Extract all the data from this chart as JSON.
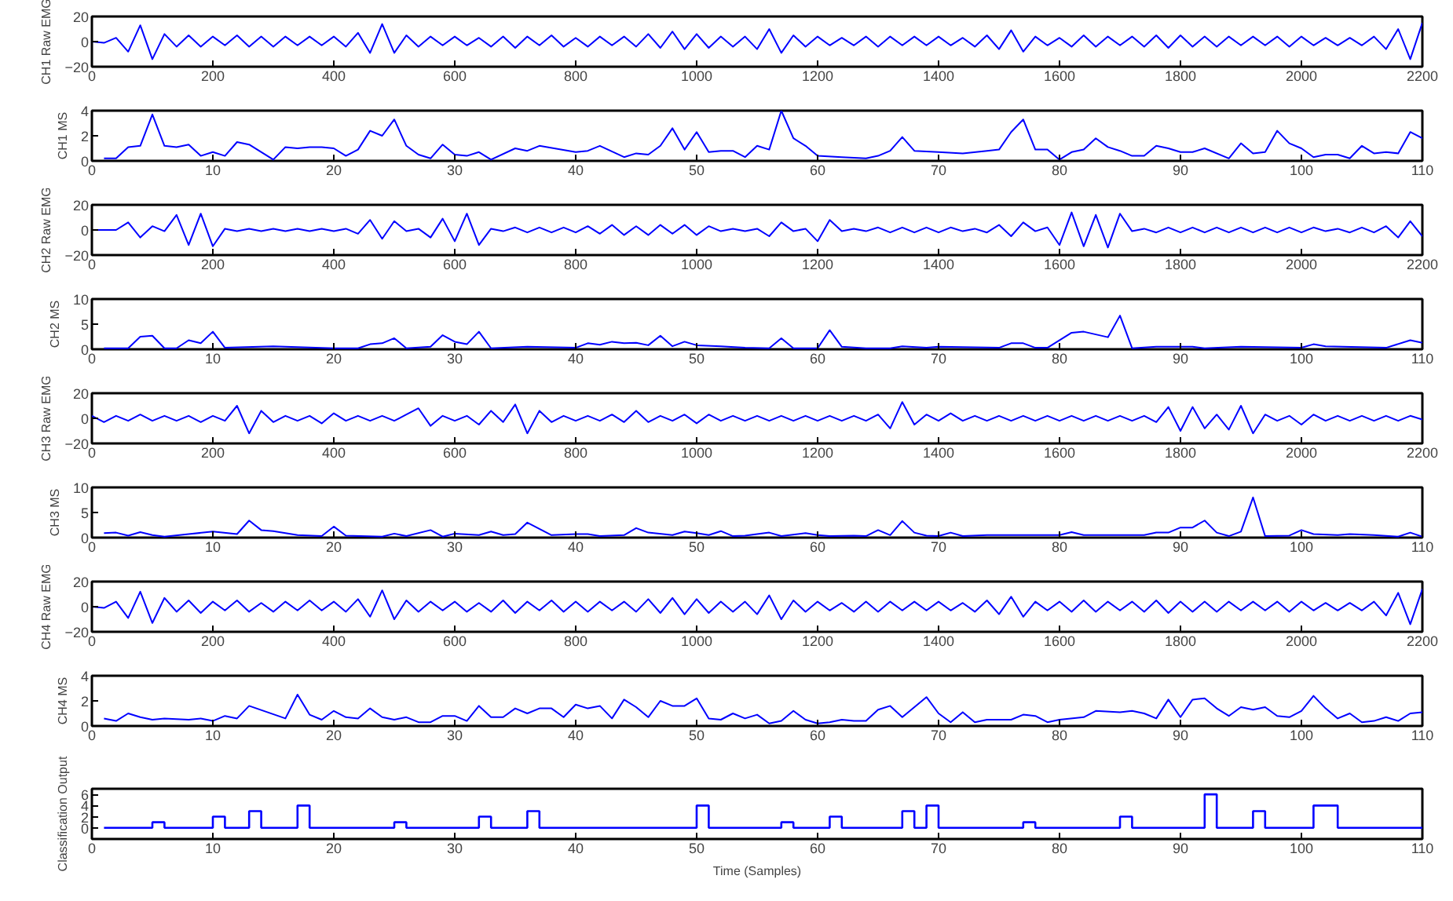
{
  "chart_data": [
    {
      "type": "line",
      "ylabel": "CH1 Raw EMG",
      "color": "#0000ff",
      "xlim": [
        0,
        2200
      ],
      "ylim": [
        -20,
        20
      ],
      "xticks": [
        0,
        200,
        400,
        600,
        800,
        1000,
        1200,
        1400,
        1600,
        1800,
        2000,
        2200
      ],
      "yticks": [
        -20,
        0,
        20
      ],
      "x": [
        0,
        20,
        40,
        60,
        80,
        100,
        120,
        140,
        160,
        180,
        200,
        220,
        240,
        260,
        280,
        300,
        320,
        340,
        360,
        380,
        400,
        420,
        440,
        460,
        480,
        500,
        520,
        540,
        560,
        580,
        600,
        620,
        640,
        660,
        680,
        700,
        720,
        740,
        760,
        780,
        800,
        820,
        840,
        860,
        880,
        900,
        920,
        940,
        960,
        980,
        1000,
        1020,
        1040,
        1060,
        1080,
        1100,
        1120,
        1140,
        1160,
        1180,
        1200,
        1220,
        1240,
        1260,
        1280,
        1300,
        1320,
        1340,
        1360,
        1380,
        1400,
        1420,
        1440,
        1460,
        1480,
        1500,
        1520,
        1540,
        1560,
        1580,
        1600,
        1620,
        1640,
        1660,
        1680,
        1700,
        1720,
        1740,
        1760,
        1780,
        1800,
        1820,
        1840,
        1860,
        1880,
        1900,
        1920,
        1940,
        1960,
        1980,
        2000,
        2020,
        2040,
        2060,
        2080,
        2100,
        2120,
        2140,
        2160,
        2180,
        2200
      ],
      "values": [
        0,
        -1,
        3,
        -8,
        13,
        -14,
        6,
        -4,
        5,
        -4,
        4,
        -3,
        5,
        -4,
        4,
        -4,
        4,
        -3,
        4,
        -3,
        4,
        -4,
        7,
        -9,
        14,
        -9,
        5,
        -4,
        4,
        -3,
        4,
        -3,
        3,
        -4,
        4,
        -5,
        4,
        -3,
        5,
        -4,
        3,
        -4,
        4,
        -3,
        4,
        -4,
        6,
        -5,
        8,
        -6,
        6,
        -5,
        4,
        -4,
        4,
        -6,
        10,
        -9,
        5,
        -4,
        4,
        -3,
        3,
        -3,
        4,
        -4,
        4,
        -3,
        4,
        -3,
        4,
        -3,
        3,
        -4,
        5,
        -6,
        9,
        -8,
        4,
        -3,
        3,
        -4,
        5,
        -4,
        4,
        -3,
        4,
        -4,
        5,
        -5,
        5,
        -4,
        4,
        -4,
        4,
        -3,
        4,
        -3,
        4,
        -4,
        4,
        -3,
        3,
        -3,
        3,
        -3,
        4,
        -6,
        10,
        -14,
        15
      ]
    },
    {
      "type": "line",
      "ylabel": "CH1 MS",
      "color": "#0000ff",
      "xlim": [
        0,
        110
      ],
      "ylim": [
        0,
        4
      ],
      "xticks": [
        0,
        10,
        20,
        30,
        40,
        50,
        60,
        70,
        80,
        90,
        100,
        110
      ],
      "yticks": [
        0,
        2,
        4
      ],
      "x": [
        1,
        2,
        3,
        4,
        5,
        6,
        7,
        8,
        9,
        10,
        11,
        12,
        13,
        15,
        16,
        17,
        18,
        19,
        20,
        21,
        22,
        23,
        24,
        25,
        26,
        27,
        28,
        29,
        30,
        31,
        32,
        33,
        35,
        36,
        37,
        40,
        41,
        42,
        44,
        45,
        46,
        47,
        48,
        49,
        50,
        51,
        52,
        53,
        54,
        55,
        56,
        57,
        58,
        59,
        60,
        62,
        64,
        65,
        66,
        67,
        68,
        70,
        72,
        74,
        75,
        76,
        77,
        78,
        79,
        80,
        81,
        82,
        83,
        84,
        85,
        86,
        87,
        88,
        89,
        90,
        91,
        92,
        94,
        95,
        96,
        97,
        98,
        99,
        100,
        101,
        102,
        103,
        104,
        105,
        106,
        107,
        108,
        109,
        110
      ],
      "values": [
        0.2,
        0.2,
        1.1,
        1.2,
        3.7,
        1.2,
        1.1,
        1.3,
        0.4,
        0.7,
        0.4,
        1.5,
        1.3,
        0.1,
        1.1,
        1.0,
        1.1,
        1.1,
        1.0,
        0.4,
        0.9,
        2.4,
        2.0,
        3.3,
        1.2,
        0.5,
        0.2,
        1.3,
        0.5,
        0.4,
        0.7,
        0.1,
        1.0,
        0.8,
        1.2,
        0.7,
        0.8,
        1.2,
        0.3,
        0.6,
        0.5,
        1.2,
        2.6,
        0.9,
        2.3,
        0.7,
        0.8,
        0.8,
        0.3,
        1.2,
        0.9,
        4.0,
        1.8,
        1.2,
        0.4,
        0.3,
        0.2,
        0.4,
        0.8,
        1.9,
        0.8,
        0.7,
        0.6,
        0.8,
        0.9,
        2.3,
        3.3,
        0.9,
        0.9,
        0.1,
        0.7,
        0.9,
        1.8,
        1.1,
        0.8,
        0.4,
        0.4,
        1.2,
        1.0,
        0.7,
        0.7,
        1.0,
        0.2,
        1.4,
        0.6,
        0.7,
        2.4,
        1.4,
        1.0,
        0.3,
        0.5,
        0.5,
        0.2,
        1.2,
        0.6,
        0.7,
        0.6,
        2.3,
        1.8
      ]
    },
    {
      "type": "line",
      "ylabel": "CH2 Raw EMG",
      "color": "#0000ff",
      "xlim": [
        0,
        2200
      ],
      "ylim": [
        -20,
        20
      ],
      "xticks": [
        0,
        200,
        400,
        600,
        800,
        1000,
        1200,
        1400,
        1600,
        1800,
        2000,
        2200
      ],
      "yticks": [
        -20,
        0,
        20
      ],
      "x": [
        0,
        20,
        40,
        60,
        80,
        100,
        120,
        140,
        160,
        180,
        200,
        220,
        240,
        260,
        280,
        300,
        320,
        340,
        360,
        380,
        400,
        420,
        440,
        460,
        480,
        500,
        520,
        540,
        560,
        580,
        600,
        620,
        640,
        660,
        680,
        700,
        720,
        740,
        760,
        780,
        800,
        820,
        840,
        860,
        880,
        900,
        920,
        940,
        960,
        980,
        1000,
        1020,
        1040,
        1060,
        1080,
        1100,
        1120,
        1140,
        1160,
        1180,
        1200,
        1220,
        1240,
        1260,
        1280,
        1300,
        1320,
        1340,
        1360,
        1380,
        1400,
        1420,
        1440,
        1460,
        1480,
        1500,
        1520,
        1540,
        1560,
        1580,
        1600,
        1620,
        1640,
        1660,
        1680,
        1700,
        1720,
        1740,
        1760,
        1780,
        1800,
        1820,
        1840,
        1860,
        1880,
        1900,
        1920,
        1940,
        1960,
        1980,
        2000,
        2020,
        2040,
        2060,
        2080,
        2100,
        2120,
        2140,
        2160,
        2180,
        2200
      ],
      "values": [
        0,
        0,
        0,
        6,
        -6,
        3,
        -1,
        12,
        -12,
        13,
        -13,
        1,
        -1,
        1,
        -1,
        1,
        -1,
        1,
        -1,
        1,
        -1,
        1,
        -3,
        8,
        -7,
        7,
        -1,
        1,
        -6,
        9,
        -9,
        13,
        -12,
        1,
        -1,
        2,
        -2,
        2,
        -2,
        2,
        -2,
        3,
        -3,
        4,
        -4,
        3,
        -4,
        4,
        -3,
        4,
        -4,
        3,
        -1,
        1,
        -1,
        1,
        -5,
        6,
        -1,
        1,
        -9,
        8,
        -1,
        1,
        -1,
        2,
        -2,
        2,
        -2,
        2,
        -2,
        2,
        -1,
        1,
        -2,
        4,
        -5,
        6,
        -1,
        2,
        -12,
        14,
        -13,
        12,
        -14,
        13,
        -1,
        1,
        -2,
        2,
        -2,
        2,
        -2,
        2,
        -2,
        2,
        -2,
        2,
        -2,
        2,
        -2,
        2,
        -1,
        1,
        -2,
        2,
        -2,
        3,
        -6,
        7,
        -5
      ]
    },
    {
      "type": "line",
      "ylabel": "CH2 MS",
      "color": "#0000ff",
      "xlim": [
        0,
        110
      ],
      "ylim": [
        0,
        10
      ],
      "xticks": [
        0,
        10,
        20,
        30,
        40,
        50,
        60,
        70,
        80,
        90,
        100,
        110
      ],
      "yticks": [
        0,
        5,
        10
      ],
      "x": [
        1,
        3,
        4,
        5,
        6,
        7,
        8,
        9,
        10,
        11,
        15,
        20,
        22,
        23,
        24,
        25,
        26,
        28,
        29,
        30,
        31,
        32,
        33,
        36,
        40,
        41,
        42,
        43,
        44,
        45,
        46,
        47,
        48,
        49,
        50,
        52,
        54,
        56,
        57,
        58,
        60,
        61,
        62,
        64,
        66,
        67,
        69,
        70,
        75,
        76,
        77,
        78,
        79,
        81,
        82,
        84,
        85,
        86,
        88,
        91,
        92,
        95,
        98,
        100,
        101,
        102,
        107,
        109,
        110
      ],
      "values": [
        0.2,
        0.2,
        2.5,
        2.7,
        0.2,
        0.2,
        1.8,
        1.2,
        3.5,
        0.3,
        0.6,
        0.2,
        0.2,
        1.0,
        1.2,
        2.2,
        0.2,
        0.5,
        2.8,
        1.5,
        1.0,
        3.5,
        0.2,
        0.5,
        0.3,
        1.2,
        0.9,
        1.5,
        1.2,
        1.3,
        0.8,
        2.7,
        0.6,
        1.5,
        0.8,
        0.6,
        0.3,
        0.2,
        2.2,
        0.2,
        0.2,
        3.8,
        0.5,
        0.2,
        0.2,
        0.6,
        0.3,
        0.5,
        0.3,
        1.2,
        1.2,
        0.3,
        0.3,
        3.3,
        3.5,
        2.4,
        6.7,
        0.2,
        0.5,
        0.5,
        0.2,
        0.5,
        0.4,
        0.3,
        1.0,
        0.6,
        0.3,
        1.8,
        1.3
      ]
    },
    {
      "type": "line",
      "ylabel": "CH3 Raw EMG",
      "color": "#0000ff",
      "xlim": [
        0,
        2200
      ],
      "ylim": [
        -20,
        20
      ],
      "xticks": [
        0,
        200,
        400,
        600,
        800,
        1000,
        1200,
        1400,
        1600,
        1800,
        2000,
        2200
      ],
      "yticks": [
        -20,
        0,
        20
      ],
      "x": [
        0,
        20,
        40,
        60,
        80,
        100,
        120,
        140,
        160,
        180,
        200,
        220,
        240,
        260,
        280,
        300,
        320,
        340,
        360,
        380,
        400,
        420,
        440,
        460,
        480,
        500,
        520,
        540,
        560,
        580,
        600,
        620,
        640,
        660,
        680,
        700,
        720,
        740,
        760,
        780,
        800,
        820,
        840,
        860,
        880,
        900,
        920,
        940,
        960,
        980,
        1000,
        1020,
        1040,
        1060,
        1080,
        1100,
        1120,
        1140,
        1160,
        1180,
        1200,
        1220,
        1240,
        1260,
        1280,
        1300,
        1320,
        1340,
        1360,
        1380,
        1400,
        1420,
        1440,
        1460,
        1480,
        1500,
        1520,
        1540,
        1560,
        1580,
        1600,
        1620,
        1640,
        1660,
        1680,
        1700,
        1720,
        1740,
        1760,
        1780,
        1800,
        1820,
        1840,
        1860,
        1880,
        1900,
        1920,
        1940,
        1960,
        1980,
        2000,
        2020,
        2040,
        2060,
        2080,
        2100,
        2120,
        2140,
        2160,
        2180,
        2200
      ],
      "values": [
        2,
        -3,
        2,
        -2,
        3,
        -2,
        2,
        -2,
        2,
        -3,
        2,
        -2,
        10,
        -12,
        6,
        -3,
        2,
        -2,
        2,
        -4,
        4,
        -2,
        2,
        -2,
        2,
        -2,
        3,
        8,
        -6,
        2,
        -2,
        2,
        -5,
        6,
        -3,
        11,
        -12,
        6,
        -3,
        2,
        -2,
        2,
        -2,
        3,
        -3,
        6,
        -3,
        2,
        -2,
        3,
        -4,
        3,
        -2,
        2,
        -2,
        2,
        -2,
        2,
        -2,
        2,
        -2,
        2,
        -2,
        2,
        -2,
        3,
        -8,
        13,
        -5,
        3,
        -2,
        4,
        -2,
        2,
        -2,
        2,
        -2,
        2,
        -2,
        2,
        -2,
        2,
        -2,
        2,
        -2,
        2,
        -2,
        2,
        -3,
        9,
        -10,
        9,
        -8,
        3,
        -9,
        10,
        -12,
        3,
        -2,
        2,
        -5,
        3,
        -2,
        2,
        -2,
        2,
        -2,
        2,
        -2,
        2,
        -1
      ]
    },
    {
      "type": "line",
      "ylabel": "CH3 MS",
      "color": "#0000ff",
      "xlim": [
        0,
        110
      ],
      "ylim": [
        0,
        10
      ],
      "xticks": [
        0,
        10,
        20,
        30,
        40,
        50,
        60,
        70,
        80,
        90,
        100,
        110
      ],
      "yticks": [
        0,
        5,
        10
      ],
      "x": [
        1,
        2,
        3,
        4,
        5,
        6,
        8,
        10,
        12,
        13,
        14,
        15,
        17,
        19,
        20,
        21,
        24,
        25,
        26,
        28,
        29,
        30,
        32,
        33,
        34,
        35,
        36,
        38,
        40,
        41,
        42,
        44,
        45,
        46,
        48,
        49,
        50,
        51,
        52,
        53,
        54,
        56,
        57,
        59,
        60,
        61,
        63,
        64,
        65,
        66,
        67,
        68,
        69,
        70,
        71,
        72,
        74,
        80,
        81,
        82,
        85,
        87,
        88,
        89,
        90,
        91,
        92,
        93,
        94,
        95,
        96,
        97,
        99,
        100,
        101,
        103,
        104,
        106,
        108,
        109,
        110
      ],
      "values": [
        0.9,
        1.0,
        0.4,
        1.1,
        0.5,
        0.2,
        0.7,
        1.2,
        0.7,
        3.4,
        1.5,
        1.3,
        0.5,
        0.3,
        2.2,
        0.4,
        0.2,
        0.8,
        0.3,
        1.5,
        0.2,
        0.8,
        0.5,
        1.2,
        0.5,
        0.7,
        3.0,
        0.5,
        0.7,
        0.7,
        0.3,
        0.5,
        1.9,
        1.0,
        0.5,
        1.2,
        0.9,
        0.5,
        1.3,
        0.3,
        0.4,
        1.0,
        0.3,
        0.9,
        0.5,
        0.3,
        0.4,
        0.3,
        1.5,
        0.5,
        3.3,
        1.0,
        0.4,
        0.3,
        1.0,
        0.3,
        0.5,
        0.5,
        1.1,
        0.5,
        0.5,
        0.5,
        1.0,
        1.0,
        2.0,
        2.0,
        3.4,
        1.0,
        0.3,
        1.2,
        8.0,
        0.3,
        0.4,
        1.5,
        0.7,
        0.5,
        0.7,
        0.5,
        0.2,
        1.0,
        0.2
      ]
    },
    {
      "type": "line",
      "ylabel": "CH4 Raw EMG",
      "color": "#0000ff",
      "xlim": [
        0,
        2200
      ],
      "ylim": [
        -20,
        20
      ],
      "xticks": [
        0,
        200,
        400,
        600,
        800,
        1000,
        1200,
        1400,
        1600,
        1800,
        2000,
        2200
      ],
      "yticks": [
        -20,
        0,
        20
      ],
      "x": [
        0,
        20,
        40,
        60,
        80,
        100,
        120,
        140,
        160,
        180,
        200,
        220,
        240,
        260,
        280,
        300,
        320,
        340,
        360,
        380,
        400,
        420,
        440,
        460,
        480,
        500,
        520,
        540,
        560,
        580,
        600,
        620,
        640,
        660,
        680,
        700,
        720,
        740,
        760,
        780,
        800,
        820,
        840,
        860,
        880,
        900,
        920,
        940,
        960,
        980,
        1000,
        1020,
        1040,
        1060,
        1080,
        1100,
        1120,
        1140,
        1160,
        1180,
        1200,
        1220,
        1240,
        1260,
        1280,
        1300,
        1320,
        1340,
        1360,
        1380,
        1400,
        1420,
        1440,
        1460,
        1480,
        1500,
        1520,
        1540,
        1560,
        1580,
        1600,
        1620,
        1640,
        1660,
        1680,
        1700,
        1720,
        1740,
        1760,
        1780,
        1800,
        1820,
        1840,
        1860,
        1880,
        1900,
        1920,
        1940,
        1960,
        1980,
        2000,
        2020,
        2040,
        2060,
        2080,
        2100,
        2120,
        2140,
        2160,
        2180,
        2200
      ],
      "values": [
        0,
        -1,
        4,
        -9,
        12,
        -13,
        7,
        -4,
        5,
        -5,
        4,
        -3,
        5,
        -4,
        3,
        -4,
        4,
        -3,
        5,
        -3,
        4,
        -4,
        6,
        -8,
        13,
        -10,
        5,
        -4,
        4,
        -3,
        4,
        -4,
        3,
        -4,
        5,
        -5,
        4,
        -3,
        5,
        -4,
        4,
        -4,
        4,
        -3,
        4,
        -4,
        6,
        -5,
        7,
        -6,
        6,
        -5,
        4,
        -4,
        4,
        -6,
        9,
        -10,
        5,
        -4,
        4,
        -3,
        3,
        -4,
        4,
        -4,
        4,
        -3,
        4,
        -3,
        4,
        -3,
        3,
        -4,
        5,
        -6,
        8,
        -8,
        4,
        -3,
        4,
        -4,
        5,
        -4,
        4,
        -3,
        4,
        -4,
        5,
        -5,
        4,
        -4,
        4,
        -4,
        4,
        -3,
        4,
        -3,
        4,
        -4,
        4,
        -3,
        3,
        -3,
        3,
        -3,
        4,
        -7,
        11,
        -14,
        14
      ]
    },
    {
      "type": "line",
      "ylabel": "CH4 MS",
      "color": "#0000ff",
      "xlim": [
        0,
        110
      ],
      "ylim": [
        0,
        4
      ],
      "xticks": [
        0,
        10,
        20,
        30,
        40,
        50,
        60,
        70,
        80,
        90,
        100,
        110
      ],
      "yticks": [
        0,
        2,
        4
      ],
      "x": [
        1,
        2,
        3,
        4,
        5,
        6,
        8,
        9,
        10,
        11,
        12,
        13,
        16,
        17,
        18,
        19,
        20,
        21,
        22,
        23,
        24,
        25,
        26,
        27,
        28,
        29,
        30,
        31,
        32,
        33,
        34,
        35,
        36,
        37,
        38,
        39,
        40,
        41,
        42,
        43,
        44,
        45,
        46,
        47,
        48,
        49,
        50,
        51,
        52,
        53,
        54,
        55,
        56,
        57,
        58,
        59,
        60,
        61,
        62,
        63,
        64,
        65,
        66,
        67,
        69,
        70,
        71,
        72,
        73,
        74,
        76,
        77,
        78,
        79,
        80,
        82,
        83,
        85,
        86,
        87,
        88,
        89,
        90,
        91,
        92,
        93,
        94,
        95,
        96,
        97,
        98,
        99,
        100,
        101,
        102,
        103,
        104,
        105,
        106,
        107,
        108,
        109,
        110
      ],
      "values": [
        0.6,
        0.4,
        1.0,
        0.7,
        0.5,
        0.6,
        0.5,
        0.6,
        0.4,
        0.8,
        0.6,
        1.6,
        0.6,
        2.5,
        0.9,
        0.5,
        1.2,
        0.7,
        0.6,
        1.4,
        0.7,
        0.5,
        0.7,
        0.3,
        0.3,
        0.8,
        0.8,
        0.4,
        1.6,
        0.7,
        0.7,
        1.4,
        1.0,
        1.4,
        1.4,
        0.7,
        1.7,
        1.4,
        1.6,
        0.6,
        2.1,
        1.5,
        0.7,
        2.0,
        1.6,
        1.6,
        2.2,
        0.6,
        0.5,
        1.0,
        0.6,
        0.9,
        0.2,
        0.4,
        1.2,
        0.5,
        0.2,
        0.3,
        0.5,
        0.4,
        0.4,
        1.3,
        1.6,
        0.7,
        2.3,
        1.0,
        0.3,
        1.1,
        0.3,
        0.5,
        0.5,
        0.9,
        0.8,
        0.3,
        0.5,
        0.7,
        1.2,
        1.1,
        1.2,
        1.0,
        0.6,
        2.1,
        0.7,
        2.1,
        2.2,
        1.4,
        0.8,
        1.5,
        1.3,
        1.5,
        0.8,
        0.7,
        1.2,
        2.4,
        1.4,
        0.6,
        1.0,
        0.3,
        0.4,
        0.7,
        0.4,
        1.0,
        1.1
      ]
    },
    {
      "type": "step",
      "ylabel": "Classification Output",
      "xlabel": "Time (Samples)",
      "color": "#0000ff",
      "xlim": [
        0,
        110
      ],
      "ylim": [
        -2,
        7
      ],
      "xticks": [
        0,
        10,
        20,
        30,
        40,
        50,
        60,
        70,
        80,
        90,
        100,
        110
      ],
      "yticks": [
        0,
        2,
        4,
        6
      ],
      "x": [
        1,
        2,
        3,
        4,
        5,
        6,
        7,
        8,
        9,
        10,
        11,
        12,
        13,
        14,
        15,
        16,
        17,
        18,
        19,
        20,
        21,
        22,
        23,
        24,
        25,
        26,
        27,
        28,
        29,
        30,
        31,
        32,
        33,
        34,
        35,
        36,
        37,
        38,
        39,
        40,
        41,
        42,
        43,
        44,
        45,
        46,
        47,
        48,
        49,
        50,
        51,
        52,
        53,
        54,
        55,
        56,
        57,
        58,
        59,
        60,
        61,
        62,
        63,
        64,
        65,
        66,
        67,
        68,
        69,
        70,
        71,
        72,
        73,
        74,
        75,
        76,
        77,
        78,
        79,
        80,
        81,
        82,
        83,
        84,
        85,
        86,
        87,
        88,
        89,
        90,
        91,
        92,
        93,
        94,
        95,
        96,
        97,
        98,
        99,
        100,
        101,
        102,
        103,
        104,
        105,
        106,
        107,
        108,
        109,
        110
      ],
      "values": [
        0,
        0,
        0,
        0,
        1,
        0,
        0,
        0,
        0,
        2,
        0,
        0,
        3,
        0,
        0,
        0,
        4,
        0,
        0,
        0,
        0,
        0,
        0,
        0,
        1,
        0,
        0,
        0,
        0,
        0,
        0,
        2,
        0,
        0,
        0,
        3,
        0,
        0,
        0,
        0,
        0,
        0,
        0,
        0,
        0,
        0,
        0,
        0,
        0,
        4,
        0,
        0,
        0,
        0,
        0,
        0,
        1,
        0,
        0,
        0,
        2,
        0,
        0,
        0,
        0,
        0,
        3,
        0,
        4,
        0,
        0,
        0,
        0,
        0,
        0,
        0,
        1,
        0,
        0,
        0,
        0,
        0,
        0,
        0,
        2,
        0,
        0,
        0,
        0,
        0,
        0,
        6,
        0,
        0,
        0,
        3,
        0,
        0,
        0,
        0,
        4,
        4,
        0,
        0,
        0,
        0,
        0,
        0,
        0,
        0
      ]
    }
  ]
}
